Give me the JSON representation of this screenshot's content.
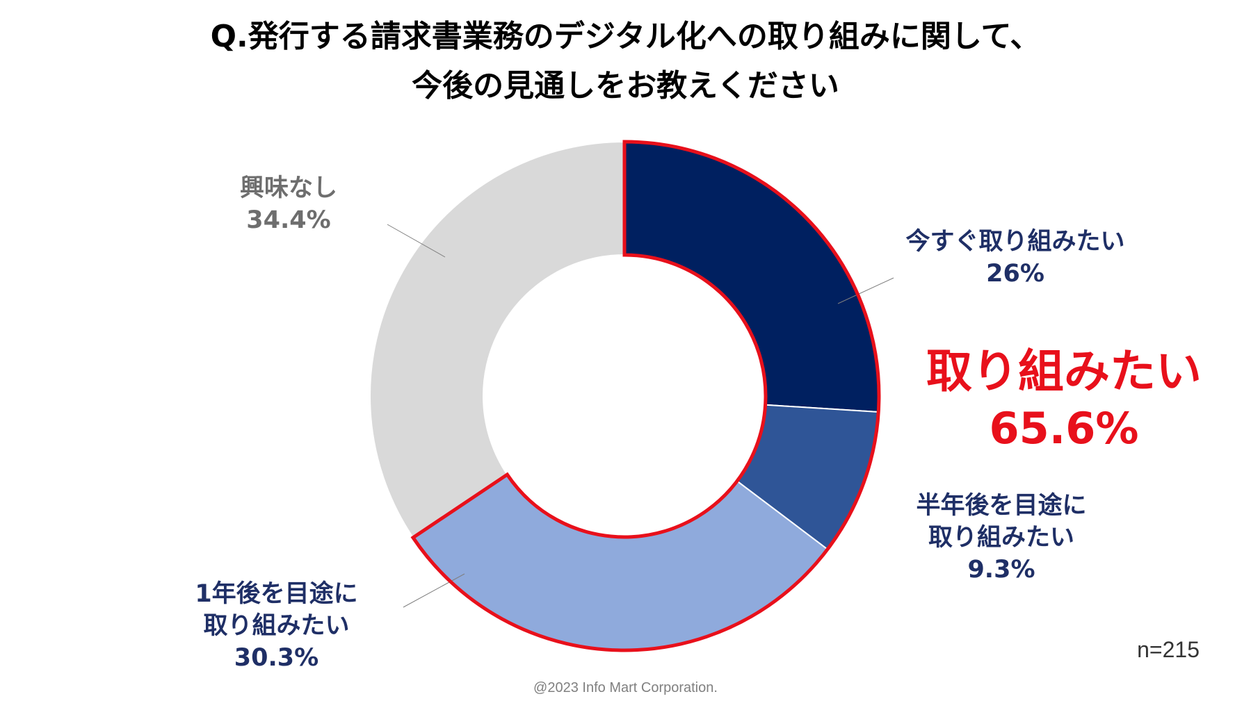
{
  "title_line1": "Q.発行する請求書業務のデジタル化への取り組みに関して、",
  "title_line2": "今後の見通しをお教えください",
  "chart_data": {
    "type": "pie",
    "style": "donut",
    "slices": [
      {
        "label": "今すぐ取り組みたい",
        "value": 26,
        "value_text": "26%",
        "color": "#002060"
      },
      {
        "label": "半年後を目途に取り組みたい",
        "value": 9.3,
        "value_text": "9.3%",
        "color": "#2f5597"
      },
      {
        "label": "1年後を目途に取り組みたい",
        "value": 30.3,
        "value_text": "30.3%",
        "color": "#8faadc"
      },
      {
        "label": "興味なし",
        "value": 34.4,
        "value_text": "34.4%",
        "color": "#d9d9d9"
      }
    ],
    "highlight": {
      "label": "取り組みたい",
      "value": 65.6,
      "value_text": "65.6%",
      "color": "#e8101b"
    },
    "sample_size": "n=215"
  },
  "labels": {
    "now": {
      "line1": "今すぐ取り組みたい",
      "line2": "26%"
    },
    "half": {
      "line1": "半年後を目途に",
      "line2": "取り組みたい",
      "line3": "9.3%"
    },
    "year": {
      "line1": "1年後を目途に",
      "line2": "取り組みたい",
      "line3": "30.3%"
    },
    "none": {
      "line1": "興味なし",
      "line2": "34.4%"
    }
  },
  "footer": {
    "copyright": "@2023 Info Mart Corporation."
  }
}
